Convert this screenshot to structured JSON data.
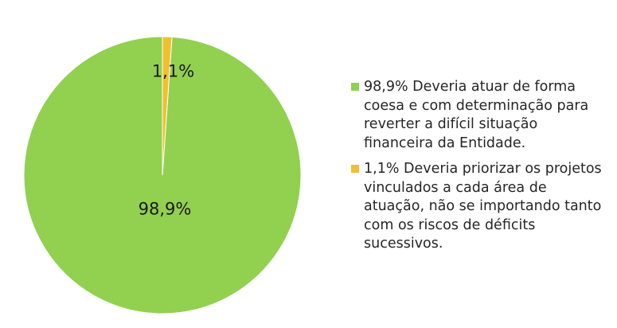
{
  "chart_data": {
    "type": "pie",
    "slices": [
      {
        "value": 98.9,
        "data_label": "98,9%",
        "legend_text": "98,9% Deveria atuar de forma coesa e com determinação para reverter a difícil situação financeira da Entidade.",
        "color": "#92D050"
      },
      {
        "value": 1.1,
        "data_label": "1,1%",
        "legend_text": "1,1% Deveria priorizar os projetos vinculados a cada área de atuação, não se importando tanto com os riscos de déficits sucessivos.",
        "color": "#F0C030"
      }
    ],
    "legend_position": "right",
    "start_angle_deg": 0,
    "direction": "counterclockwise"
  }
}
